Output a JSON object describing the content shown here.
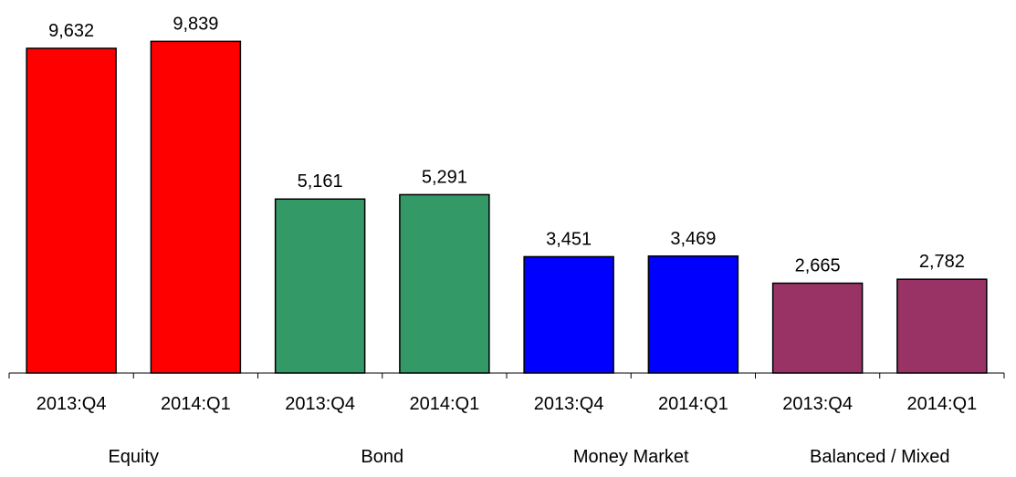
{
  "chart_data": {
    "type": "bar",
    "categories": [
      {
        "label": "Equity",
        "color": "#ff0000",
        "bars": [
          {
            "tick": "2013:Q4",
            "value": 9632,
            "label": "9,632"
          },
          {
            "tick": "2014:Q1",
            "value": 9839,
            "label": "9,839"
          }
        ]
      },
      {
        "label": "Bond",
        "color": "#339966",
        "bars": [
          {
            "tick": "2013:Q4",
            "value": 5161,
            "label": "5,161"
          },
          {
            "tick": "2014:Q1",
            "value": 5291,
            "label": "5,291"
          }
        ]
      },
      {
        "label": "Money Market",
        "color": "#0000ff",
        "bars": [
          {
            "tick": "2013:Q4",
            "value": 3451,
            "label": "3,451"
          },
          {
            "tick": "2014:Q1",
            "value": 3469,
            "label": "3,469"
          }
        ]
      },
      {
        "label": "Balanced / Mixed",
        "color": "#993366",
        "bars": [
          {
            "tick": "2013:Q4",
            "value": 2665,
            "label": "2,665"
          },
          {
            "tick": "2014:Q1",
            "value": 2782,
            "label": "2,782"
          }
        ]
      }
    ],
    "ylim": [
      0,
      10000
    ],
    "grid": false,
    "legend": "none"
  }
}
